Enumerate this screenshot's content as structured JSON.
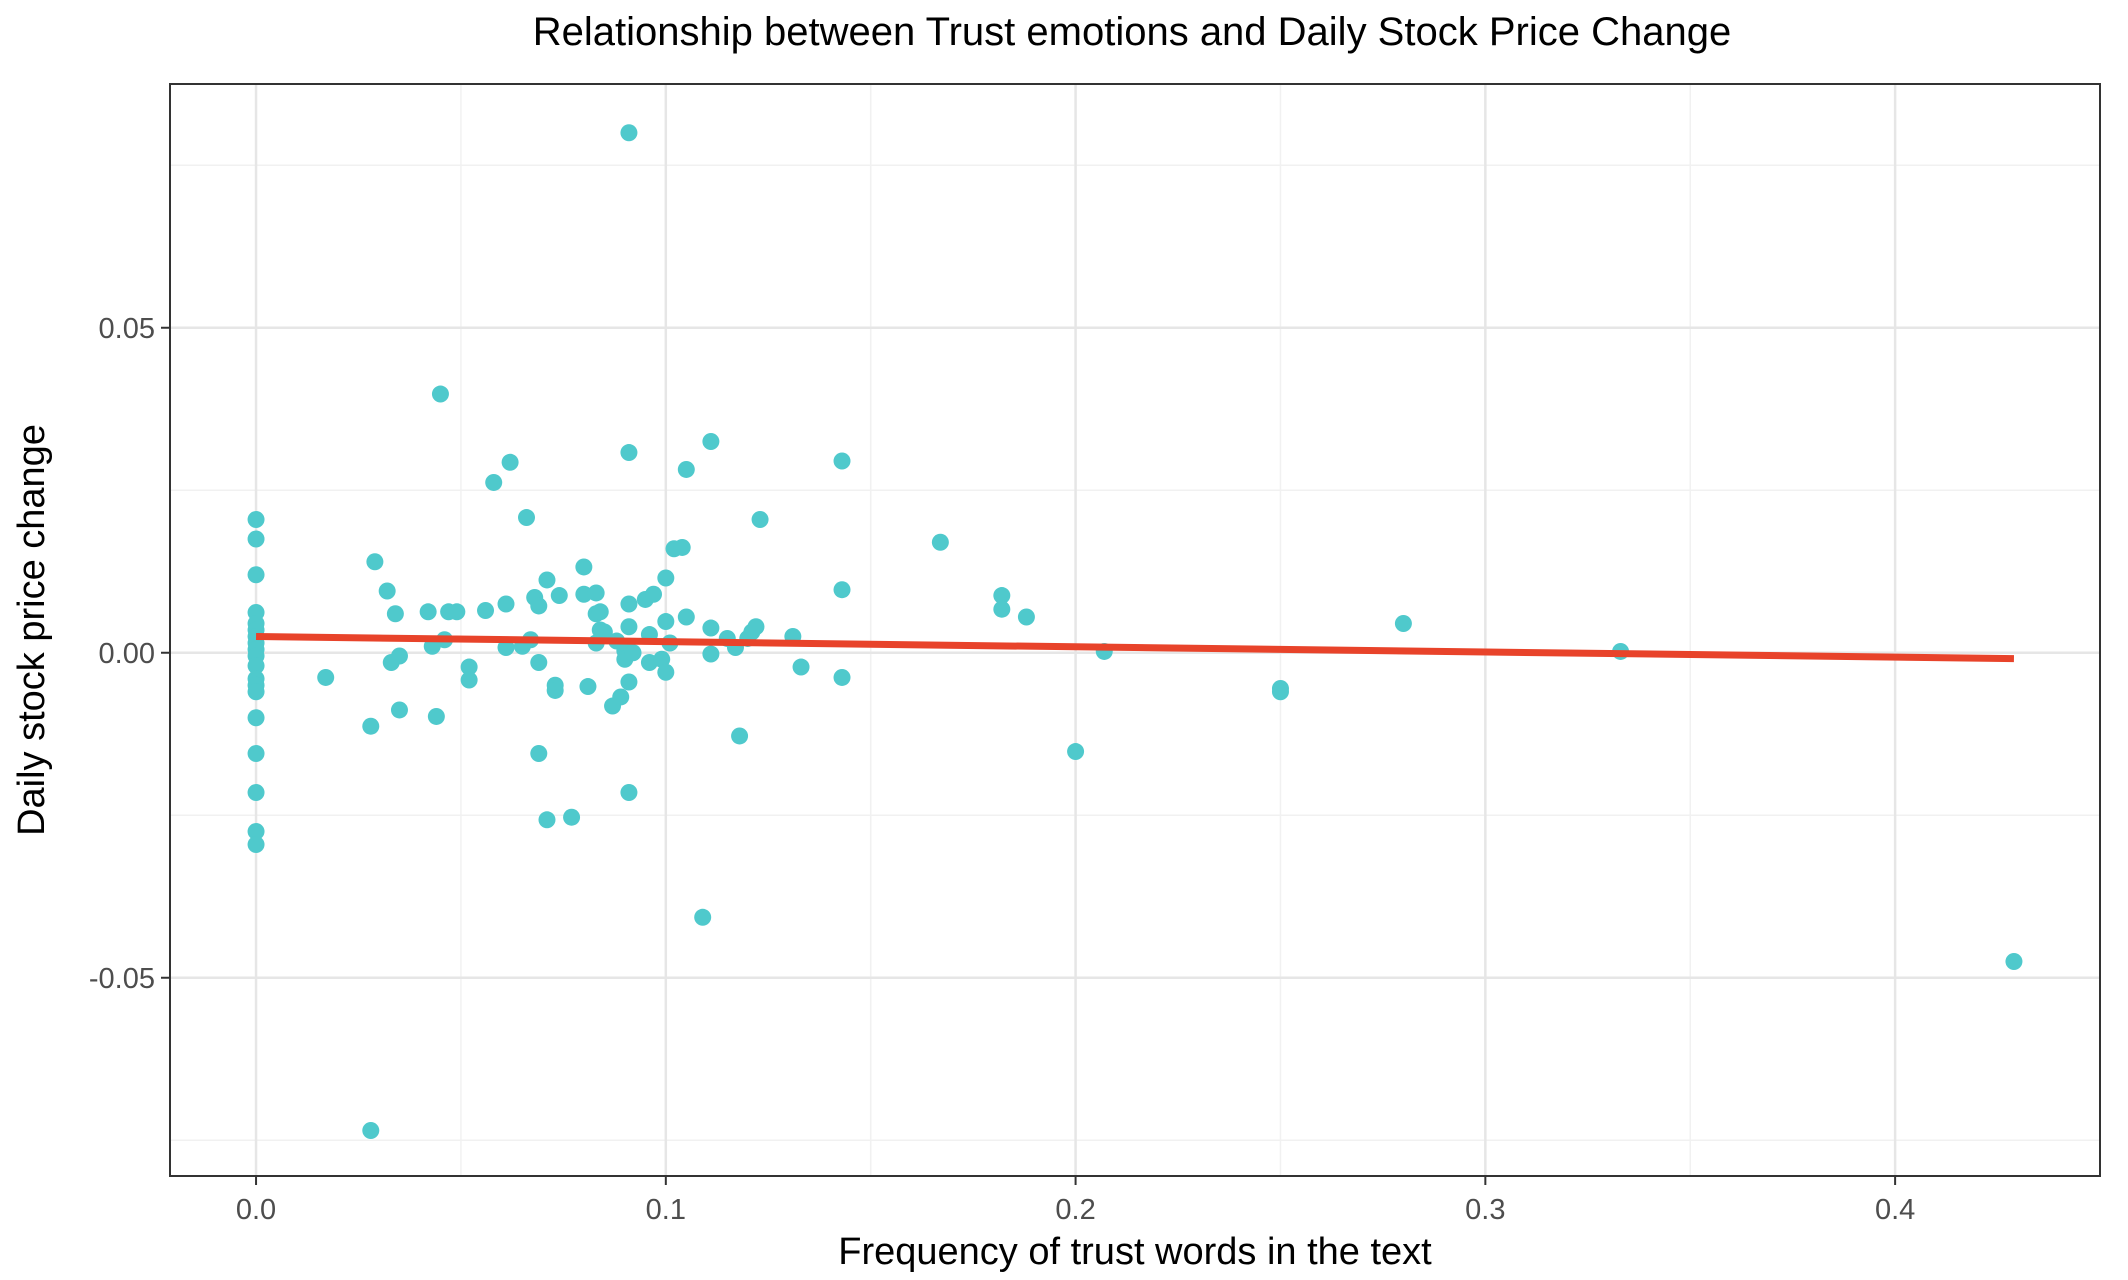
{
  "chart_data": {
    "type": "scatter",
    "title": "Relationship between Trust emotions and Daily Stock Price Change",
    "xlabel": "Frequency of trust words in the text",
    "ylabel": "Daily stock price change",
    "xlim": [
      -0.021,
      0.45
    ],
    "ylim": [
      -0.0805,
      0.0875
    ],
    "x_ticks": [
      0.0,
      0.1,
      0.2,
      0.3,
      0.4
    ],
    "x_tick_labels": [
      "0.0",
      "0.1",
      "0.2",
      "0.3",
      "0.4"
    ],
    "y_ticks": [
      -0.05,
      0.0,
      0.05
    ],
    "y_tick_labels": [
      "-0.05",
      "0.00",
      "0.05"
    ],
    "grid": true,
    "point_color": "#4fc9cc",
    "trend_color": "#e8432a",
    "trend_line": {
      "x": [
        0.0,
        0.429
      ],
      "y": [
        0.0025,
        -0.0009
      ]
    },
    "points": [
      {
        "x": 0.0,
        "y": 0.0205
      },
      {
        "x": 0.0,
        "y": 0.0175
      },
      {
        "x": 0.0,
        "y": 0.012
      },
      {
        "x": 0.0,
        "y": 0.0062
      },
      {
        "x": 0.0,
        "y": 0.0045
      },
      {
        "x": 0.0,
        "y": 0.0035
      },
      {
        "x": 0.0,
        "y": 0.0025
      },
      {
        "x": 0.0,
        "y": 0.0015
      },
      {
        "x": 0.0,
        "y": 0.0005
      },
      {
        "x": 0.0,
        "y": -0.0005
      },
      {
        "x": 0.0,
        "y": -0.002
      },
      {
        "x": 0.0,
        "y": -0.004
      },
      {
        "x": 0.0,
        "y": -0.005
      },
      {
        "x": 0.0,
        "y": -0.006
      },
      {
        "x": 0.0,
        "y": -0.01
      },
      {
        "x": 0.0,
        "y": -0.0155
      },
      {
        "x": 0.0,
        "y": -0.0215
      },
      {
        "x": 0.0,
        "y": -0.0275
      },
      {
        "x": 0.0,
        "y": -0.0295
      },
      {
        "x": 0.017,
        "y": -0.0038
      },
      {
        "x": 0.028,
        "y": -0.0113
      },
      {
        "x": 0.028,
        "y": -0.0735
      },
      {
        "x": 0.029,
        "y": 0.014
      },
      {
        "x": 0.032,
        "y": 0.0095
      },
      {
        "x": 0.033,
        "y": -0.0015
      },
      {
        "x": 0.034,
        "y": 0.006
      },
      {
        "x": 0.035,
        "y": -0.0005
      },
      {
        "x": 0.035,
        "y": -0.0088
      },
      {
        "x": 0.042,
        "y": 0.0063
      },
      {
        "x": 0.043,
        "y": 0.001
      },
      {
        "x": 0.044,
        "y": -0.0098
      },
      {
        "x": 0.045,
        "y": 0.0398
      },
      {
        "x": 0.046,
        "y": 0.002
      },
      {
        "x": 0.047,
        "y": 0.0063
      },
      {
        "x": 0.049,
        "y": 0.0063
      },
      {
        "x": 0.052,
        "y": -0.0022
      },
      {
        "x": 0.052,
        "y": -0.0042
      },
      {
        "x": 0.056,
        "y": 0.0065
      },
      {
        "x": 0.058,
        "y": 0.0262
      },
      {
        "x": 0.061,
        "y": 0.0075
      },
      {
        "x": 0.061,
        "y": 0.0008
      },
      {
        "x": 0.062,
        "y": 0.0293
      },
      {
        "x": 0.065,
        "y": 0.001
      },
      {
        "x": 0.066,
        "y": 0.0208
      },
      {
        "x": 0.067,
        "y": 0.002
      },
      {
        "x": 0.068,
        "y": 0.0085
      },
      {
        "x": 0.069,
        "y": 0.0072
      },
      {
        "x": 0.069,
        "y": -0.0015
      },
      {
        "x": 0.069,
        "y": -0.0155
      },
      {
        "x": 0.071,
        "y": 0.0112
      },
      {
        "x": 0.071,
        "y": -0.0257
      },
      {
        "x": 0.073,
        "y": -0.005
      },
      {
        "x": 0.073,
        "y": -0.0058
      },
      {
        "x": 0.074,
        "y": 0.0088
      },
      {
        "x": 0.077,
        "y": -0.0253
      },
      {
        "x": 0.08,
        "y": 0.0132
      },
      {
        "x": 0.08,
        "y": 0.009
      },
      {
        "x": 0.081,
        "y": -0.0052
      },
      {
        "x": 0.083,
        "y": 0.0092
      },
      {
        "x": 0.083,
        "y": 0.006
      },
      {
        "x": 0.083,
        "y": 0.0015
      },
      {
        "x": 0.084,
        "y": 0.0063
      },
      {
        "x": 0.084,
        "y": 0.0035
      },
      {
        "x": 0.085,
        "y": 0.0032
      },
      {
        "x": 0.087,
        "y": -0.0082
      },
      {
        "x": 0.088,
        "y": 0.0018
      },
      {
        "x": 0.089,
        "y": -0.0068
      },
      {
        "x": 0.09,
        "y": 0.0003
      },
      {
        "x": 0.09,
        "y": -0.001
      },
      {
        "x": 0.091,
        "y": 0.08
      },
      {
        "x": 0.091,
        "y": 0.0308
      },
      {
        "x": 0.091,
        "y": 0.0075
      },
      {
        "x": 0.091,
        "y": 0.004
      },
      {
        "x": 0.091,
        "y": -0.0045
      },
      {
        "x": 0.091,
        "y": -0.0215
      },
      {
        "x": 0.092,
        "y": 0.0
      },
      {
        "x": 0.095,
        "y": 0.0082
      },
      {
        "x": 0.096,
        "y": 0.0028
      },
      {
        "x": 0.096,
        "y": -0.0015
      },
      {
        "x": 0.097,
        "y": 0.009
      },
      {
        "x": 0.099,
        "y": -0.001
      },
      {
        "x": 0.1,
        "y": 0.0115
      },
      {
        "x": 0.1,
        "y": 0.0048
      },
      {
        "x": 0.1,
        "y": -0.003
      },
      {
        "x": 0.101,
        "y": 0.0015
      },
      {
        "x": 0.102,
        "y": 0.016
      },
      {
        "x": 0.104,
        "y": 0.0162
      },
      {
        "x": 0.105,
        "y": 0.0282
      },
      {
        "x": 0.105,
        "y": 0.0055
      },
      {
        "x": 0.109,
        "y": -0.0407
      },
      {
        "x": 0.111,
        "y": 0.0325
      },
      {
        "x": 0.111,
        "y": 0.0038
      },
      {
        "x": 0.111,
        "y": -0.0002
      },
      {
        "x": 0.115,
        "y": 0.0022
      },
      {
        "x": 0.117,
        "y": 0.0008
      },
      {
        "x": 0.118,
        "y": -0.0128
      },
      {
        "x": 0.12,
        "y": 0.0022
      },
      {
        "x": 0.121,
        "y": 0.0032
      },
      {
        "x": 0.122,
        "y": 0.004
      },
      {
        "x": 0.123,
        "y": 0.0205
      },
      {
        "x": 0.131,
        "y": 0.0025
      },
      {
        "x": 0.133,
        "y": -0.0022
      },
      {
        "x": 0.143,
        "y": 0.0295
      },
      {
        "x": 0.143,
        "y": 0.0097
      },
      {
        "x": 0.143,
        "y": -0.0038
      },
      {
        "x": 0.167,
        "y": 0.017
      },
      {
        "x": 0.182,
        "y": 0.0088
      },
      {
        "x": 0.182,
        "y": 0.0067
      },
      {
        "x": 0.188,
        "y": 0.0055
      },
      {
        "x": 0.2,
        "y": -0.0152
      },
      {
        "x": 0.207,
        "y": 0.0002
      },
      {
        "x": 0.25,
        "y": -0.0055
      },
      {
        "x": 0.25,
        "y": -0.006
      },
      {
        "x": 0.28,
        "y": 0.0045
      },
      {
        "x": 0.333,
        "y": 0.0002
      },
      {
        "x": 0.429,
        "y": -0.0475
      }
    ]
  }
}
